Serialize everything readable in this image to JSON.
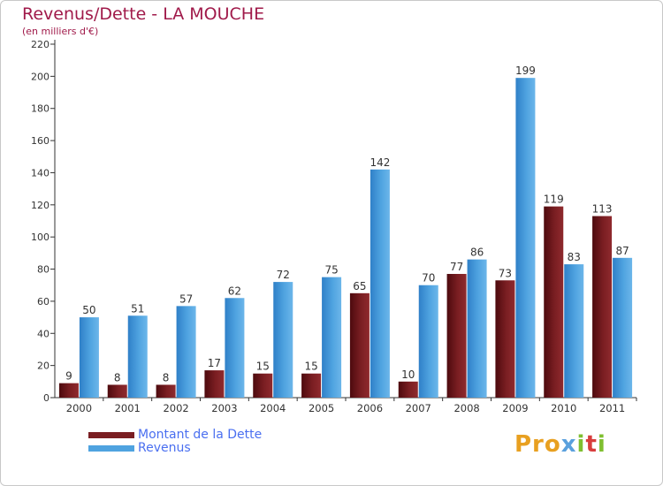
{
  "header": {
    "title": "Revenus/Dette - LA MOUCHE",
    "subtitle": "(en milliers d'€)"
  },
  "legend": {
    "dette_label": "Montant de la Dette",
    "revenus_label": "Revenus"
  },
  "brand": {
    "letters": [
      "Pro",
      "x",
      "i",
      "t",
      "i"
    ]
  },
  "colors": {
    "dette": "#7a1e22",
    "revenus": "#4fa3e0",
    "title": "#a01a4a",
    "legend_text": "#4a6ff0"
  },
  "chart_data": {
    "type": "bar",
    "title": "Revenus/Dette - LA MOUCHE",
    "subtitle": "(en milliers d'€)",
    "xlabel": "",
    "ylabel": "",
    "ylim": [
      0,
      220
    ],
    "yticks": [
      0,
      20,
      40,
      60,
      80,
      100,
      120,
      140,
      160,
      180,
      200,
      220
    ],
    "grid": false,
    "legend_position": "bottom-left",
    "categories": [
      "2000",
      "2001",
      "2002",
      "2003",
      "2004",
      "2005",
      "2006",
      "2007",
      "2008",
      "2009",
      "2010",
      "2011"
    ],
    "series": [
      {
        "name": "Montant de la Dette",
        "values": [
          9,
          8,
          8,
          17,
          15,
          15,
          65,
          10,
          77,
          73,
          119,
          113
        ]
      },
      {
        "name": "Revenus",
        "values": [
          50,
          51,
          57,
          62,
          72,
          75,
          142,
          70,
          86,
          199,
          83,
          87
        ]
      }
    ]
  }
}
